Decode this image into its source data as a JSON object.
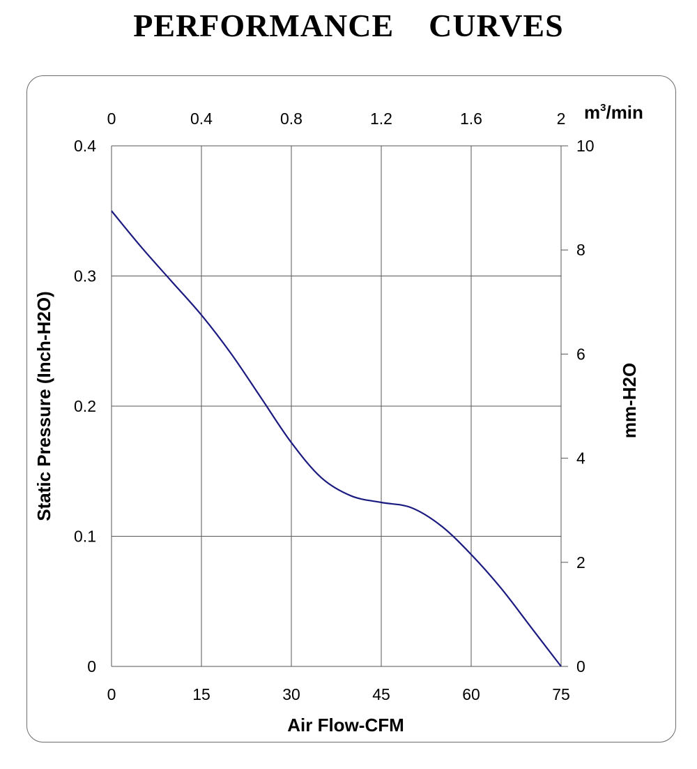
{
  "page": {
    "title": "PERFORMANCE    CURVES"
  },
  "colors": {
    "curve": "#1a1a80",
    "grid": "#555555",
    "frame": "#6b6b6b"
  },
  "chart_data": {
    "type": "line",
    "title": "PERFORMANCE    CURVES",
    "xlabel": "Air Flow-CFM",
    "ylabel": "Static Pressure (Inch-H2O)",
    "x2label": "m3/min",
    "x2label_base": "m",
    "x2label_sup": "3",
    "x2label_rest": "/min",
    "y2label": "mm-H2O",
    "xlim": [
      0,
      75
    ],
    "ylim": [
      0,
      0.4
    ],
    "x2lim": [
      0,
      2
    ],
    "y2lim": [
      0,
      10
    ],
    "xticks": [
      "0",
      "15",
      "30",
      "45",
      "60",
      "75"
    ],
    "yticks": [
      "0",
      "0.1",
      "0.2",
      "0.3",
      "0.4"
    ],
    "x2ticks": [
      "0",
      "0.4",
      "0.8",
      "1.2",
      "1.6",
      "2"
    ],
    "y2ticks": [
      "0",
      "2",
      "4",
      "6",
      "8",
      "10"
    ],
    "grid": true,
    "series": [
      {
        "x": [
          0,
          5,
          10,
          15,
          20,
          25,
          30,
          35,
          40,
          45,
          50,
          55,
          60,
          65,
          70,
          75
        ],
        "y": [
          0.35,
          0.322,
          0.296,
          0.27,
          0.24,
          0.206,
          0.172,
          0.145,
          0.131,
          0.126,
          0.122,
          0.108,
          0.086,
          0.06,
          0.03,
          0.0
        ]
      }
    ]
  }
}
